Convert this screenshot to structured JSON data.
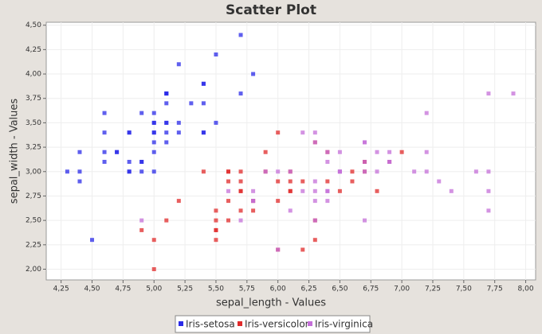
{
  "chart_data": {
    "type": "scatter",
    "title": "Scatter Plot",
    "x_label": "sepal_length - Values",
    "y_label": "sepal_width - Values",
    "xlim": [
      4.13,
      8.08
    ],
    "ylim": [
      1.89,
      4.53
    ],
    "grid": true,
    "legend": "bottom",
    "xticks": [
      {
        "value": 4.25,
        "label": "4,25"
      },
      {
        "value": 4.5,
        "label": "4,50"
      },
      {
        "value": 4.75,
        "label": "4,75"
      },
      {
        "value": 5.0,
        "label": "5,00"
      },
      {
        "value": 5.25,
        "label": "5,25"
      },
      {
        "value": 5.5,
        "label": "5,50"
      },
      {
        "value": 5.75,
        "label": "5,75"
      },
      {
        "value": 6.0,
        "label": "6,00"
      },
      {
        "value": 6.25,
        "label": "6,25"
      },
      {
        "value": 6.5,
        "label": "6,50"
      },
      {
        "value": 6.75,
        "label": "6,75"
      },
      {
        "value": 7.0,
        "label": "7,00"
      },
      {
        "value": 7.25,
        "label": "7,25"
      },
      {
        "value": 7.5,
        "label": "7,50"
      },
      {
        "value": 7.75,
        "label": "7,75"
      },
      {
        "value": 8.0,
        "label": "8,00"
      }
    ],
    "yticks": [
      {
        "value": 2.0,
        "label": "2,00"
      },
      {
        "value": 2.25,
        "label": "2,25"
      },
      {
        "value": 2.5,
        "label": "2,50"
      },
      {
        "value": 2.75,
        "label": "2,75"
      },
      {
        "value": 3.0,
        "label": "3,00"
      },
      {
        "value": 3.25,
        "label": "3,25"
      },
      {
        "value": 3.5,
        "label": "3,50"
      },
      {
        "value": 3.75,
        "label": "3,75"
      },
      {
        "value": 4.0,
        "label": "4,00"
      },
      {
        "value": 4.25,
        "label": "4,25"
      },
      {
        "value": 4.5,
        "label": "4,50"
      }
    ],
    "series": [
      {
        "name": "Iris-setosa",
        "color": "#2a2ae8",
        "x": [
          5.1,
          4.9,
          4.7,
          4.6,
          5.0,
          5.4,
          4.6,
          5.0,
          4.4,
          4.9,
          5.4,
          4.8,
          4.8,
          4.3,
          5.8,
          5.7,
          5.4,
          5.1,
          5.7,
          5.1,
          5.4,
          5.1,
          4.6,
          5.1,
          4.8,
          5.0,
          5.0,
          5.2,
          5.2,
          4.7,
          4.8,
          5.4,
          5.2,
          5.5,
          4.9,
          5.0,
          5.5,
          4.9,
          4.4,
          5.1,
          5.0,
          4.5,
          4.4,
          5.0,
          5.1,
          4.8,
          5.1,
          4.6,
          5.3,
          5.0
        ],
        "values": [
          3.5,
          3.0,
          3.2,
          3.1,
          3.6,
          3.9,
          3.4,
          3.4,
          2.9,
          3.1,
          3.7,
          3.4,
          3.0,
          3.0,
          4.0,
          4.4,
          3.9,
          3.5,
          3.8,
          3.8,
          3.4,
          3.7,
          3.6,
          3.3,
          3.4,
          3.0,
          3.4,
          3.5,
          3.4,
          3.2,
          3.1,
          3.4,
          4.1,
          4.2,
          3.1,
          3.2,
          3.5,
          3.6,
          3.0,
          3.4,
          3.5,
          2.3,
          3.2,
          3.5,
          3.8,
          3.0,
          3.8,
          3.2,
          3.7,
          3.3
        ]
      },
      {
        "name": "Iris-versicolor",
        "color": "#e02a2a",
        "x": [
          7.0,
          6.4,
          6.9,
          5.5,
          6.5,
          5.7,
          6.3,
          4.9,
          6.6,
          5.2,
          5.0,
          5.9,
          6.0,
          6.1,
          5.6,
          6.7,
          5.6,
          5.8,
          6.2,
          5.6,
          5.9,
          6.1,
          6.3,
          6.1,
          6.4,
          6.6,
          6.8,
          6.7,
          6.0,
          5.7,
          5.5,
          5.5,
          5.8,
          6.0,
          5.4,
          6.0,
          6.7,
          6.3,
          5.6,
          5.5,
          5.5,
          6.1,
          5.8,
          5.0,
          5.6,
          5.7,
          5.7,
          6.2,
          5.1,
          5.7
        ],
        "values": [
          3.2,
          3.2,
          3.1,
          2.3,
          2.8,
          2.8,
          3.3,
          2.4,
          2.9,
          2.7,
          2.0,
          3.0,
          2.2,
          2.9,
          2.9,
          3.1,
          3.0,
          2.7,
          2.2,
          2.5,
          3.2,
          2.8,
          2.5,
          2.8,
          2.9,
          3.0,
          2.8,
          3.0,
          2.9,
          2.6,
          2.4,
          2.4,
          2.7,
          2.7,
          3.0,
          3.4,
          3.1,
          2.3,
          3.0,
          2.5,
          2.6,
          3.0,
          2.6,
          2.3,
          2.7,
          3.0,
          2.9,
          2.9,
          2.5,
          2.8
        ]
      },
      {
        "name": "Iris-virginica",
        "color": "#c46fd8",
        "x": [
          6.3,
          5.8,
          7.1,
          6.3,
          6.5,
          7.6,
          4.9,
          7.3,
          6.7,
          7.2,
          6.5,
          6.4,
          6.8,
          5.7,
          5.8,
          6.4,
          6.5,
          7.7,
          7.7,
          6.0,
          6.9,
          5.6,
          7.7,
          6.3,
          6.7,
          7.2,
          6.2,
          6.1,
          6.4,
          7.2,
          7.4,
          7.9,
          6.4,
          6.3,
          6.1,
          7.7,
          6.3,
          6.4,
          6.0,
          6.9,
          6.7,
          6.9,
          5.8,
          6.8,
          6.7,
          6.7,
          6.3,
          6.5,
          6.2,
          5.9
        ],
        "values": [
          3.3,
          2.7,
          3.0,
          2.9,
          3.0,
          3.0,
          2.5,
          2.9,
          2.5,
          3.6,
          3.2,
          2.7,
          3.0,
          2.5,
          2.8,
          3.2,
          3.0,
          3.8,
          2.6,
          2.2,
          3.2,
          2.8,
          2.8,
          2.7,
          3.3,
          3.2,
          2.8,
          3.0,
          2.8,
          3.0,
          2.8,
          3.8,
          2.8,
          2.8,
          2.6,
          3.0,
          3.4,
          3.1,
          3.0,
          3.1,
          3.1,
          3.1,
          2.7,
          3.2,
          3.3,
          3.0,
          2.5,
          3.0,
          3.4,
          3.0
        ]
      }
    ]
  }
}
